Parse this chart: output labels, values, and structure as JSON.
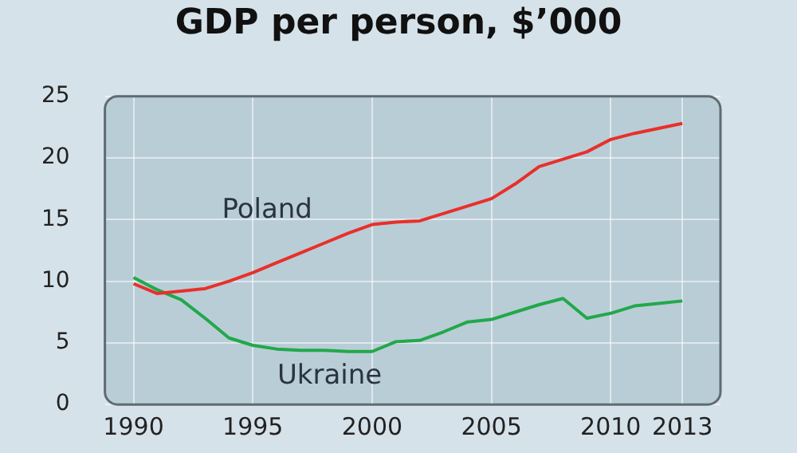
{
  "chart_data": {
    "type": "line",
    "title": "GDP per person, $’000",
    "x": [
      1990,
      1991,
      1992,
      1993,
      1994,
      1995,
      1996,
      1997,
      1998,
      1999,
      2000,
      2001,
      2002,
      2003,
      2004,
      2005,
      2006,
      2007,
      2008,
      2009,
      2010,
      2011,
      2012,
      2013
    ],
    "series": [
      {
        "name": "Poland",
        "color": "#e8302a",
        "values": [
          9.8,
          9.0,
          9.2,
          9.4,
          10.0,
          10.7,
          11.5,
          12.3,
          13.1,
          13.9,
          14.6,
          14.8,
          14.9,
          15.5,
          16.1,
          16.7,
          17.9,
          19.3,
          19.9,
          20.5,
          21.5,
          22.0,
          22.4,
          22.8
        ]
      },
      {
        "name": "Ukraine",
        "color": "#22a84a",
        "values": [
          10.3,
          9.3,
          8.5,
          7.0,
          5.4,
          4.8,
          4.5,
          4.4,
          4.4,
          4.3,
          4.3,
          5.1,
          5.2,
          5.9,
          6.7,
          6.9,
          7.5,
          8.1,
          8.6,
          7.0,
          7.4,
          8.0,
          8.2,
          8.4
        ]
      }
    ],
    "xlim": [
      1988.8,
      2014.6
    ],
    "xticks": [
      1990,
      1995,
      2000,
      2005,
      2010,
      2013
    ],
    "ylim": [
      0,
      25
    ],
    "yticks": [
      0,
      5,
      10,
      15,
      20,
      25
    ],
    "grid": true,
    "legend": false,
    "marker": "none",
    "line_style": "solid"
  }
}
